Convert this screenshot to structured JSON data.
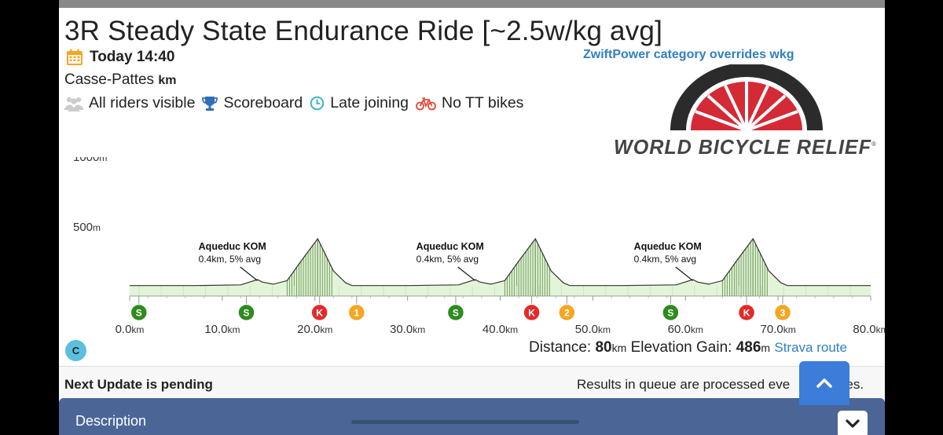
{
  "event": {
    "title": "3R Steady State Endurance Ride [~2.5w/kg avg]",
    "date": "Today 14:40",
    "route": "Casse-Pattes",
    "route_unit": "km",
    "zwiftpower_note": "ZwiftPower category overrides wkg",
    "logo_text": "WORLD BICYCLE RELIEF"
  },
  "features": [
    {
      "icon": "users-icon",
      "label": "All riders visible"
    },
    {
      "icon": "trophy-icon",
      "label": "Scoreboard"
    },
    {
      "icon": "clock-icon",
      "label": "Late joining"
    },
    {
      "icon": "bicycle-icon",
      "label": "No TT bikes"
    }
  ],
  "colors": {
    "accent_blue": "#2f7fc1",
    "profile_fill": "#e3f5d8",
    "sprint_green": "#2e8b1f",
    "kom_red": "#e32a2a",
    "lap_orange": "#f5a623",
    "desc_bar": "#4b6696",
    "scroll_button": "#3b7dd8"
  },
  "chart_data": {
    "type": "area",
    "xlabel": "",
    "ylabel": "",
    "x_unit": "km",
    "y_unit": "m",
    "xlim": [
      0,
      80
    ],
    "ylim": [
      0,
      1000
    ],
    "x_ticks": [
      0,
      10,
      20,
      30,
      40,
      50,
      60,
      70,
      80
    ],
    "x_tick_labels": [
      "0.0",
      "10.0",
      "20.0",
      "30.0",
      "40.0",
      "50.0",
      "60.0",
      "70.0",
      "80.0"
    ],
    "y_ticks": [
      500,
      1000
    ],
    "y_tick_labels": [
      "500",
      "1000"
    ],
    "series": [
      {
        "x": [
          0,
          7,
          12,
          13.8,
          14.3,
          15.5,
          17,
          18.5,
          20.3,
          22,
          23.3,
          24,
          30,
          35.5,
          37.3,
          37.8,
          39,
          40.5,
          42,
          43.8,
          45.5,
          46.8,
          47.5,
          53,
          59,
          60.8,
          61.3,
          62.5,
          64,
          65.5,
          67.3,
          69,
          70.3,
          71,
          80
        ],
        "y": [
          75,
          75,
          80,
          118,
          100,
          85,
          110,
          250,
          410,
          180,
          95,
          75,
          75,
          80,
          118,
          100,
          85,
          110,
          250,
          410,
          180,
          95,
          75,
          75,
          80,
          118,
          100,
          85,
          110,
          250,
          410,
          180,
          95,
          75,
          75
        ]
      }
    ],
    "annotations": [
      {
        "label": "Aqueduc KOM",
        "detail": "0.4km, 5% avg",
        "km": 13.8
      },
      {
        "label": "Aqueduc KOM",
        "detail": "0.4km, 5% avg",
        "km": 37.3
      },
      {
        "label": "Aqueduc KOM",
        "detail": "0.4km, 5% avg",
        "km": 60.8
      }
    ],
    "markers": [
      {
        "type": "S",
        "km": 1
      },
      {
        "type": "S",
        "km": 12.6
      },
      {
        "type": "K",
        "km": 20.5
      },
      {
        "type": "1",
        "km": 24.5
      },
      {
        "type": "S",
        "km": 35.2
      },
      {
        "type": "K",
        "km": 43.4
      },
      {
        "type": "2",
        "km": 47.2
      },
      {
        "type": "S",
        "km": 58.4
      },
      {
        "type": "K",
        "km": 66.6
      },
      {
        "type": "3",
        "km": 70.5
      }
    ]
  },
  "summary": {
    "distance_label": "Distance:",
    "distance_value": "80",
    "distance_unit": "km",
    "elevation_label": "Elevation Gain:",
    "elevation_value": "486",
    "elevation_unit": "m",
    "strava_link": "Strava route"
  },
  "category_badge": "C",
  "update": {
    "left": "Next Update is pending",
    "right": "Results in queue are processed eve",
    "right_tail": "utes."
  },
  "description": {
    "label": "Description"
  }
}
